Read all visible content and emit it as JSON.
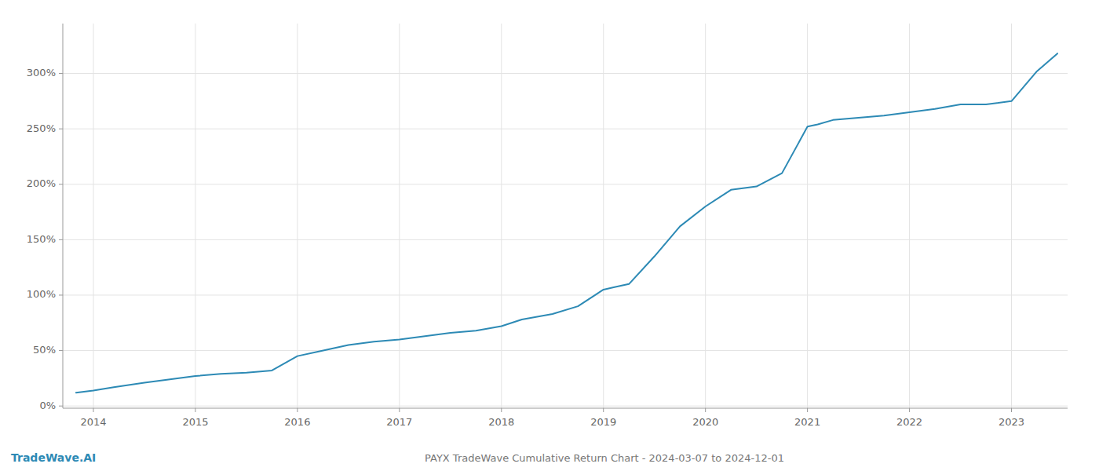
{
  "chart_data": {
    "type": "line",
    "title": "PAYX TradeWave Cumulative Return Chart - 2024-03-07 to 2024-12-01",
    "annotations": [
      "TradeWave.AI"
    ],
    "color": "#2d8ab5",
    "grid": true,
    "xlim": [
      2013.7,
      2023.55
    ],
    "ylim": [
      -0.02,
      3.45
    ],
    "xticks": [
      2014,
      2015,
      2016,
      2017,
      2018,
      2019,
      2020,
      2021,
      2022,
      2023
    ],
    "yticks": [
      {
        "value": 0.0,
        "label": "0%"
      },
      {
        "value": 0.5,
        "label": "50%"
      },
      {
        "value": 1.0,
        "label": "100%"
      },
      {
        "value": 1.5,
        "label": "150%"
      },
      {
        "value": 2.0,
        "label": "200%"
      },
      {
        "value": 2.5,
        "label": "250%"
      },
      {
        "value": 3.0,
        "label": "300%"
      }
    ],
    "x": [
      2013.83,
      2014.0,
      2014.2,
      2014.5,
      2014.75,
      2015.0,
      2015.25,
      2015.5,
      2015.75,
      2016.0,
      2016.2,
      2016.5,
      2016.75,
      2017.0,
      2017.25,
      2017.5,
      2017.75,
      2018.0,
      2018.2,
      2018.5,
      2018.75,
      2019.0,
      2019.1,
      2019.25,
      2019.5,
      2019.75,
      2020.0,
      2020.25,
      2020.5,
      2020.75,
      2021.0,
      2021.1,
      2021.25,
      2021.5,
      2021.75,
      2022.0,
      2022.25,
      2022.5,
      2022.75,
      2023.0,
      2023.25,
      2023.45
    ],
    "values": [
      0.12,
      0.14,
      0.17,
      0.21,
      0.24,
      0.27,
      0.29,
      0.3,
      0.32,
      0.45,
      0.49,
      0.55,
      0.58,
      0.6,
      0.63,
      0.66,
      0.68,
      0.72,
      0.78,
      0.83,
      0.9,
      1.05,
      1.07,
      1.1,
      1.35,
      1.62,
      1.8,
      1.95,
      1.98,
      2.1,
      2.52,
      2.54,
      2.58,
      2.6,
      2.62,
      2.65,
      2.68,
      2.72,
      2.72,
      2.75,
      3.02,
      3.18
    ]
  }
}
